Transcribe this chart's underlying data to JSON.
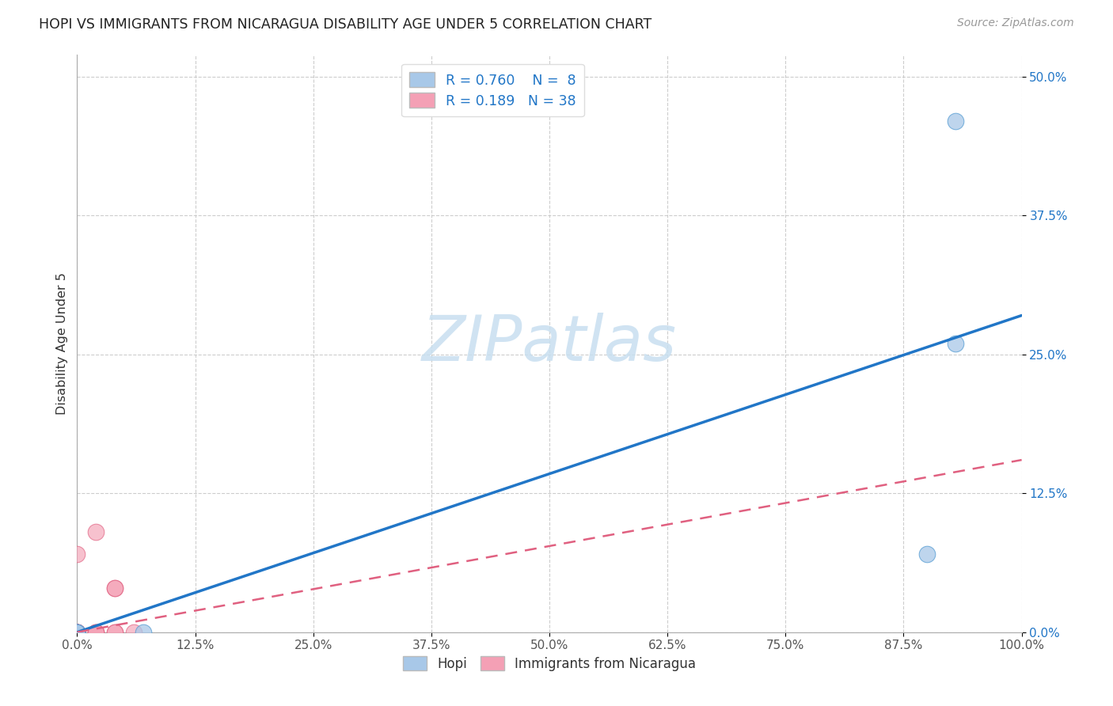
{
  "title": "HOPI VS IMMIGRANTS FROM NICARAGUA DISABILITY AGE UNDER 5 CORRELATION CHART",
  "source": "Source: ZipAtlas.com",
  "ylabel": "Disability Age Under 5",
  "xlim": [
    0.0,
    1.0
  ],
  "ylim": [
    0.0,
    0.52
  ],
  "xtick_labels": [
    "0.0%",
    "12.5%",
    "25.0%",
    "37.5%",
    "50.0%",
    "62.5%",
    "75.0%",
    "87.5%",
    "100.0%"
  ],
  "xtick_vals": [
    0.0,
    0.125,
    0.25,
    0.375,
    0.5,
    0.625,
    0.75,
    0.875,
    1.0
  ],
  "ytick_labels": [
    "0.0%",
    "12.5%",
    "25.0%",
    "37.5%",
    "50.0%"
  ],
  "ytick_vals": [
    0.0,
    0.125,
    0.25,
    0.375,
    0.5
  ],
  "hopi_R": "0.760",
  "hopi_N": "8",
  "nicaragua_R": "0.189",
  "nicaragua_N": "38",
  "hopi_color": "#a8c8e8",
  "hopi_edge_color": "#5a9fd4",
  "hopi_line_color": "#2176c7",
  "nicaragua_color": "#f4a0b5",
  "nicaragua_edge_color": "#e06080",
  "nicaragua_line_color": "#e06080",
  "grid_color": "#c8c8c8",
  "watermark_color": "#c8dff0",
  "legend_label_hopi": "Hopi",
  "legend_label_nicaragua": "Immigrants from Nicaragua",
  "hopi_line_x0": 0.0,
  "hopi_line_y0": 0.0,
  "hopi_line_x1": 1.0,
  "hopi_line_y1": 0.285,
  "nicaragua_line_x0": 0.0,
  "nicaragua_line_y0": 0.0,
  "nicaragua_line_x1": 1.0,
  "nicaragua_line_y1": 0.155,
  "hopi_points_x": [
    0.0,
    0.0,
    0.0,
    0.07,
    0.0,
    0.9,
    0.93,
    0.93
  ],
  "hopi_points_y": [
    0.0,
    0.0,
    0.0,
    0.0,
    0.0,
    0.07,
    0.26,
    0.46
  ],
  "nicaragua_points_x": [
    0.0,
    0.0,
    0.0,
    0.0,
    0.0,
    0.0,
    0.0,
    0.0,
    0.0,
    0.0,
    0.0,
    0.0,
    0.0,
    0.0,
    0.0,
    0.0,
    0.0,
    0.0,
    0.0,
    0.0,
    0.0,
    0.0,
    0.0,
    0.02,
    0.02,
    0.02,
    0.02,
    0.04,
    0.04,
    0.04,
    0.04,
    0.06,
    0.0,
    0.0,
    0.0,
    0.0,
    0.0,
    0.0
  ],
  "nicaragua_points_y": [
    0.0,
    0.0,
    0.0,
    0.0,
    0.0,
    0.0,
    0.0,
    0.0,
    0.0,
    0.0,
    0.0,
    0.0,
    0.0,
    0.0,
    0.0,
    0.0,
    0.0,
    0.0,
    0.0,
    0.0,
    0.0,
    0.0,
    0.0,
    0.0,
    0.0,
    0.0,
    0.09,
    0.0,
    0.0,
    0.04,
    0.04,
    0.0,
    0.0,
    0.0,
    0.0,
    0.0,
    0.0,
    0.07
  ]
}
